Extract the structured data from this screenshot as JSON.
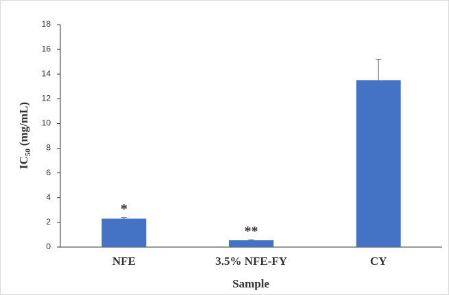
{
  "chart_data": {
    "type": "bar",
    "categories": [
      "NFE",
      "3.5% NFE-FY",
      "CY"
    ],
    "values": [
      2.3,
      0.55,
      13.5
    ],
    "errors": [
      0.1,
      0.03,
      1.7
    ],
    "annotations": [
      "*",
      "**",
      null
    ],
    "color": "#4472c4",
    "xlabel": "Sample",
    "ylabel_parts": [
      "IC",
      "50",
      "(mg/mL)"
    ],
    "ylim": [
      0,
      18
    ],
    "yticks": [
      0,
      2,
      4,
      6,
      8,
      10,
      12,
      14,
      16,
      18
    ],
    "grid": false
  }
}
